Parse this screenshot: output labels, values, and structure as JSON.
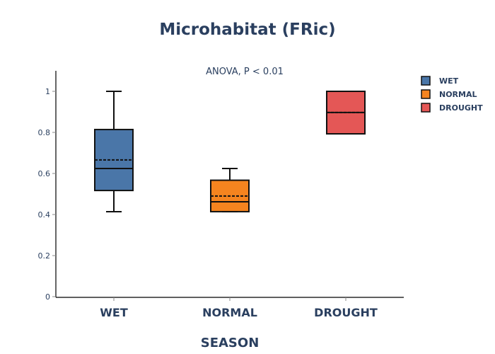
{
  "chart_data": {
    "type": "box",
    "title": "Microhabitat (FRic)",
    "annotation": "ANOVA, P < 0.01",
    "xlabel": "SEASON",
    "ylabel": "",
    "ylim": [
      0,
      1.1
    ],
    "yticks": [
      0,
      0.2,
      0.4,
      0.6,
      0.8,
      1
    ],
    "ytick_labels": [
      "0",
      "0.2",
      "0.4",
      "0.6",
      "0.8",
      "1"
    ],
    "categories": [
      "WET",
      "NORMAL",
      "DROUGHT"
    ],
    "legend_position": "top-right",
    "grid": false,
    "series": [
      {
        "name": "WET",
        "color": "#4a76a8",
        "lowerfence": 0.414,
        "q1": 0.517,
        "median": 0.624,
        "mean": 0.666,
        "q3": 0.814,
        "upperfence": 1.0
      },
      {
        "name": "NORMAL",
        "color": "#f5841f",
        "lowerfence": 0.414,
        "q1": 0.414,
        "median": 0.462,
        "mean": 0.49,
        "q3": 0.567,
        "upperfence": 0.624
      },
      {
        "name": "DROUGHT",
        "color": "#e45756",
        "lowerfence": 0.793,
        "q1": 0.793,
        "median": 0.897,
        "mean": 0.897,
        "q3": 1.0,
        "upperfence": 1.0
      }
    ]
  }
}
